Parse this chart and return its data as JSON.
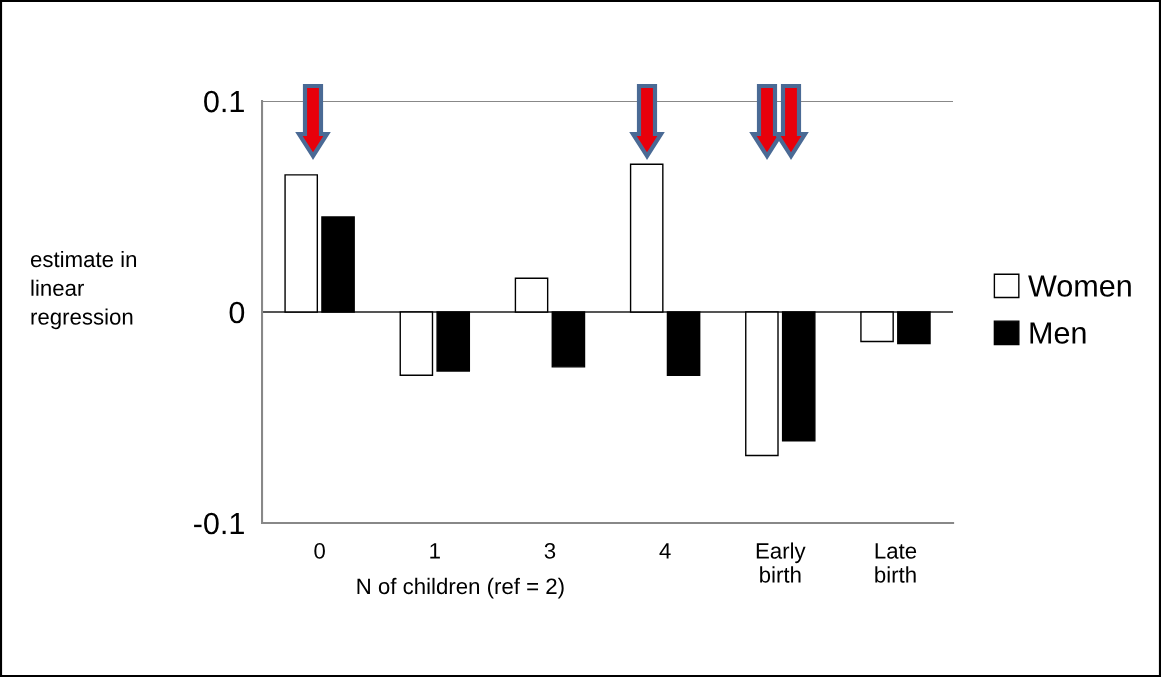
{
  "chart_data": {
    "type": "bar",
    "categories": [
      "0",
      "1",
      "3",
      "4",
      "Early\nbirth",
      "Late\nbirth"
    ],
    "series": [
      {
        "name": "Women",
        "color": "#ffffff",
        "values": [
          0.065,
          -0.03,
          0.016,
          0.07,
          -0.068,
          -0.014
        ]
      },
      {
        "name": "Men",
        "color": "#000000",
        "values": [
          0.045,
          -0.028,
          -0.026,
          -0.03,
          -0.061,
          -0.015
        ]
      }
    ],
    "xlabel": "N of children (ref = 2)",
    "ylabel": "estimate in\nlinear\nregression",
    "ylim": [
      -0.1,
      0.1
    ],
    "yticks": [
      {
        "value": -0.1,
        "label": "-0.1"
      },
      0,
      0.1
    ],
    "grid": "y",
    "legend": "right"
  }
}
